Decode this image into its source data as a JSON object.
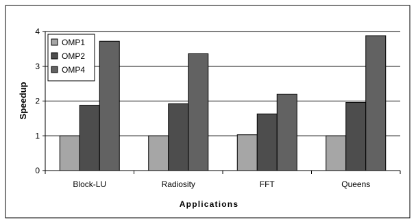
{
  "chart_data": {
    "type": "bar",
    "title": "",
    "xlabel": "Applications",
    "ylabel": "Speedup",
    "ylim": [
      0,
      4
    ],
    "yticks": [
      "0",
      "1",
      "2",
      "3",
      "4"
    ],
    "categories": [
      "Block-LU",
      "Radiosity",
      "FFT",
      "Queens"
    ],
    "series": [
      {
        "name": "OMP1",
        "color": "#a6a6a6",
        "values": [
          1.0,
          1.0,
          1.03,
          1.0
        ]
      },
      {
        "name": "OMP2",
        "color": "#4d4d4d",
        "values": [
          1.88,
          1.92,
          1.63,
          1.96
        ]
      },
      {
        "name": "OMP4",
        "color": "#626262",
        "values": [
          3.72,
          3.36,
          2.2,
          3.88
        ]
      }
    ],
    "grid": true,
    "legend_position": "top-left"
  }
}
